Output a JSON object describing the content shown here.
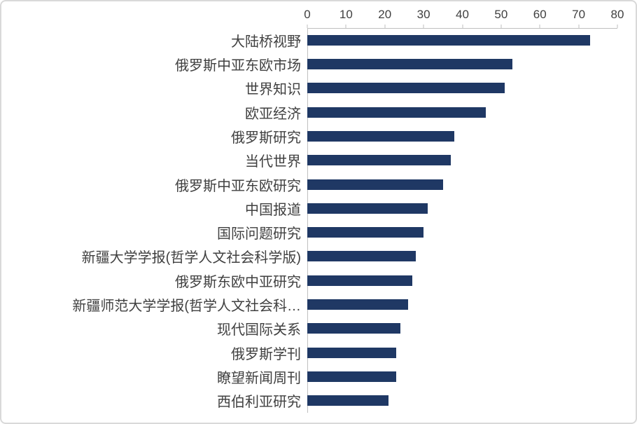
{
  "chart_data": {
    "type": "bar",
    "orientation": "horizontal",
    "title": "",
    "xlabel": "",
    "ylabel": "",
    "categories": [
      "大陆桥视野",
      "俄罗斯中亚东欧市场",
      "世界知识",
      "欧亚经济",
      "俄罗斯研究",
      "当代世界",
      "俄罗斯中亚东欧研究",
      "中国报道",
      "国际问题研究",
      "新疆大学学报(哲学人文社会科学版)",
      "俄罗斯东欧中亚研究",
      "新疆师范大学学报(哲学人文社会科…",
      "现代国际关系",
      "俄罗斯学刊",
      "瞭望新闻周刊",
      "西伯利亚研究"
    ],
    "values": [
      73,
      53,
      51,
      46,
      38,
      37,
      35,
      31,
      30,
      28,
      27,
      26,
      24,
      23,
      23,
      21
    ],
    "xlim": [
      0,
      80
    ],
    "xticks": [
      0,
      10,
      20,
      30,
      40,
      50,
      60,
      70,
      80
    ],
    "axis_position": "top",
    "grid": "off",
    "legend": "none",
    "bar_color": "#1f3864",
    "axis_color": "#bfbfbf",
    "tick_label_color": "#404040"
  }
}
